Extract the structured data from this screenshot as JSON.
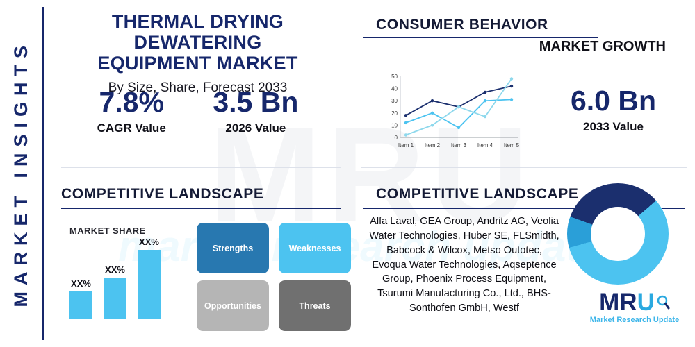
{
  "sidebar": {
    "label": "MARKET INSIGHTS"
  },
  "header": {
    "title_line1": "THERMAL DRYING DEWATERING",
    "title_line2": "EQUIPMENT MARKET",
    "subtitle": "By Size, Share, Forecast 2033"
  },
  "stats": {
    "cagr_value": "7.8%",
    "cagr_label": "CAGR Value",
    "v2026": "3.5 Bn",
    "v2026_label": "2026 Value",
    "v2033": "6.0 Bn",
    "v2033_label": "2033 Value"
  },
  "consumer_behavior": {
    "heading": "CONSUMER BEHAVIOR",
    "subheading": "MARKET GROWTH"
  },
  "competitive_left": {
    "heading": "COMPETITIVE LANDSCAPE",
    "market_share_label": "MARKET SHARE"
  },
  "swot": {
    "cells": [
      {
        "label": "Strengths",
        "color": "#2878b0"
      },
      {
        "label": "Weaknesses",
        "color": "#4cc3f0"
      },
      {
        "label": "Opportunities",
        "color": "#b5b5b5"
      },
      {
        "label": "Threats",
        "color": "#707070"
      }
    ]
  },
  "competitive_right": {
    "heading": "COMPETITIVE LANDSCAPE",
    "companies": "Alfa Laval, GEA Group, Andritz AG, Veolia Water Technologies, Huber SE, FLSmidth, Babcock & Wilcox, Metso Outotec, Evoqua Water Technologies, Aqseptence Group, Phoenix Process Equipment, Tsurumi Manufacturing Co., Ltd., BHS-Sonthofen GmbH, Westf"
  },
  "logo": {
    "text_primary": "MR",
    "text_accent": "U",
    "tagline": "Market Research Update"
  },
  "watermark": {
    "text": "MRU",
    "subtext": "market research update"
  },
  "colors": {
    "navy": "#16276b",
    "light_blue": "#4cc3f0",
    "steel_blue": "#2878b0",
    "gray": "#b5b5b5",
    "dark_gray": "#707070"
  },
  "chart_data": [
    {
      "type": "line",
      "title": "MARKET GROWTH",
      "x": [
        "Item 1",
        "Item 2",
        "Item 3",
        "Item 4",
        "Item 5"
      ],
      "series": [
        {
          "name": "series-navy",
          "color": "#1b2f6e",
          "values": [
            18,
            30,
            25,
            37,
            42
          ]
        },
        {
          "name": "series-light-blue",
          "color": "#4cc3f0",
          "values": [
            12,
            20,
            8,
            30,
            31
          ]
        },
        {
          "name": "series-pale-teal",
          "color": "#8ed8ec",
          "values": [
            2,
            10,
            25,
            17,
            48
          ]
        }
      ],
      "ylim": [
        0,
        50
      ],
      "yticks": [
        0,
        10,
        20,
        30,
        40,
        50
      ],
      "grid": false,
      "legend": "none"
    },
    {
      "type": "bar",
      "title": "MARKET SHARE",
      "categories": [
        "XX%",
        "XX%",
        "XX%"
      ],
      "values": [
        30,
        45,
        75
      ],
      "bar_color": "#4cc3f0",
      "ylim": [
        0,
        75
      ]
    },
    {
      "type": "pie",
      "title": "market-share-donut",
      "slices": [
        {
          "label": "segment-navy",
          "value": 33,
          "color": "#1b2f6e"
        },
        {
          "label": "segment-light-blue",
          "value": 57,
          "color": "#4cc3f0"
        },
        {
          "label": "segment-medium-blue",
          "value": 10,
          "color": "#2a9fd8"
        }
      ],
      "hole": 0.53
    }
  ]
}
